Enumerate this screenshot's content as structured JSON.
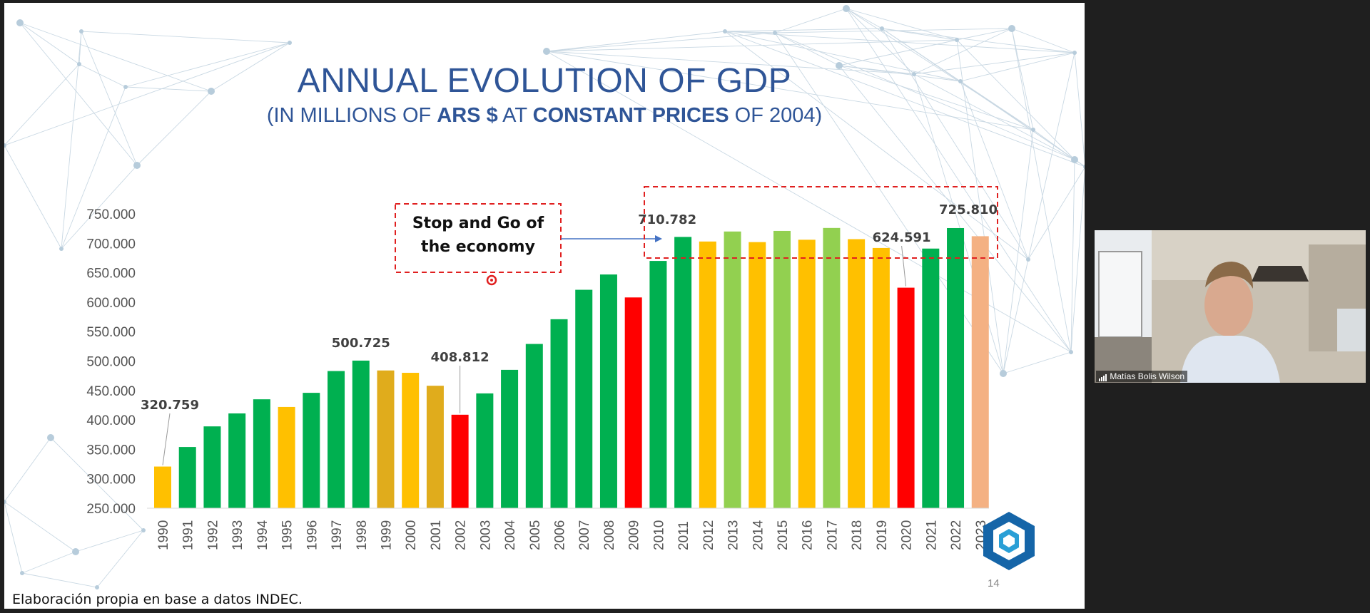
{
  "slide": {
    "title": "ANNUAL EVOLUTION OF GDP",
    "subtitle_parts": [
      "(IN MILLIONS OF ",
      "ARS $",
      " AT ",
      "CONSTANT PRICES",
      " OF 2004)"
    ],
    "annotation": [
      "Stop and Go of",
      "the economy"
    ],
    "source_note": "Elaboración propia en base a datos INDEC.",
    "page_number": "14"
  },
  "chart_data": {
    "type": "bar",
    "title": "ANNUAL EVOLUTION OF GDP",
    "ylim": [
      250000,
      750000
    ],
    "y_ticks": [
      250000,
      300000,
      350000,
      400000,
      450000,
      500000,
      550000,
      600000,
      650000,
      700000,
      750000
    ],
    "y_tick_labels": [
      "250.000",
      "300.000",
      "350.000",
      "400.000",
      "450.000",
      "500.000",
      "550.000",
      "600.000",
      "650.000",
      "700.000",
      "750.000"
    ],
    "categories": [
      "1990",
      "1991",
      "1992",
      "1993",
      "1994",
      "1995",
      "1996",
      "1997",
      "1998",
      "1999",
      "2000",
      "2001",
      "2002",
      "2003",
      "2004",
      "2005",
      "2006",
      "2007",
      "2008",
      "2009",
      "2010",
      "2011",
      "2012",
      "2013",
      "2014",
      "2015",
      "2016",
      "2017",
      "2018",
      "2019",
      "2020",
      "2021",
      "2022",
      "2023"
    ],
    "values": [
      320759,
      354000,
      389000,
      411000,
      435000,
      422000,
      446000,
      483000,
      500725,
      484000,
      480000,
      458000,
      408812,
      445000,
      485000,
      529000,
      571000,
      621000,
      647000,
      608000,
      670000,
      710782,
      703000,
      720000,
      702000,
      721000,
      706000,
      726000,
      707000,
      692000,
      624591,
      691000,
      725810,
      712000
    ],
    "colors": [
      "#ffc000",
      "#00b050",
      "#00b050",
      "#00b050",
      "#00b050",
      "#ffc000",
      "#00b050",
      "#00b050",
      "#00b050",
      "#e0ac1c",
      "#ffc000",
      "#e0ac1c",
      "#ff0000",
      "#00b050",
      "#00b050",
      "#00b050",
      "#00b050",
      "#00b050",
      "#00b050",
      "#ff0000",
      "#00b050",
      "#00b050",
      "#ffc000",
      "#92d050",
      "#ffc000",
      "#92d050",
      "#ffc000",
      "#92d050",
      "#ffc000",
      "#ffc000",
      "#ff0000",
      "#00b050",
      "#00b050",
      "#f4b183"
    ],
    "data_labels": [
      {
        "category": "1990",
        "text": "320.759"
      },
      {
        "category": "1998",
        "text": "500.725"
      },
      {
        "category": "2002",
        "text": "408.812"
      },
      {
        "category": "2011",
        "text": "710.782"
      },
      {
        "category": "2020",
        "text": "624.591"
      },
      {
        "category": "2022",
        "text": "725.810"
      }
    ],
    "grid": false,
    "legend": "none"
  },
  "video": {
    "participant_name": "Matías Bolis Wilson"
  }
}
